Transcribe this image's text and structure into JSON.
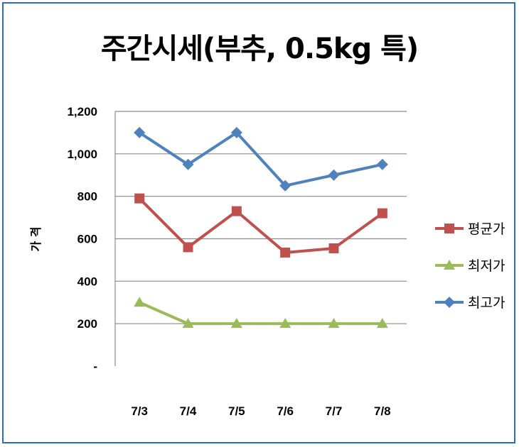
{
  "chart_data": {
    "type": "line",
    "title": "주간시세(부추, 0.5kg 특)",
    "ylabel": "가 격",
    "xlabel": "",
    "categories": [
      "7/3",
      "7/4",
      "7/5",
      "7/6",
      "7/7",
      "7/8"
    ],
    "ylim": [
      0,
      1200
    ],
    "yticks": [
      0,
      200,
      400,
      600,
      800,
      1000,
      1200
    ],
    "ytick_labels": [
      "-",
      "200",
      "400",
      "600",
      "800",
      "1,000",
      "1,200"
    ],
    "grid": true,
    "legend_position": "right",
    "series": [
      {
        "name": "평균가",
        "values": [
          790,
          560,
          730,
          535,
          555,
          720
        ],
        "color": "#c0504d",
        "marker": "square"
      },
      {
        "name": "최저가",
        "values": [
          300,
          200,
          200,
          200,
          200,
          200
        ],
        "color": "#9bbb59",
        "marker": "triangle"
      },
      {
        "name": "최고가",
        "values": [
          1100,
          950,
          1100,
          850,
          900,
          950
        ],
        "color": "#4f81bd",
        "marker": "diamond"
      }
    ]
  }
}
